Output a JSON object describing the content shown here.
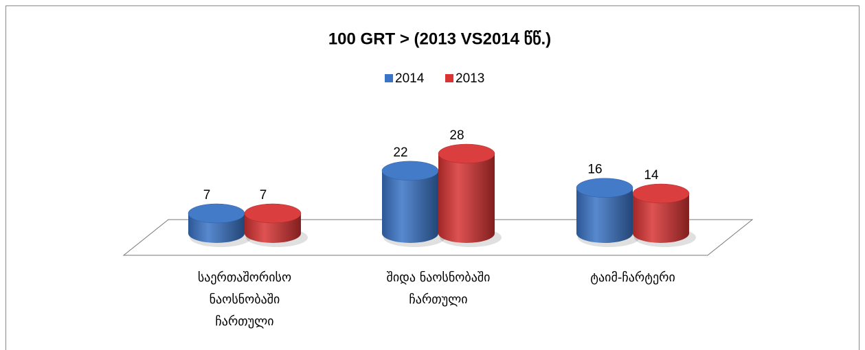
{
  "chart_data": {
    "type": "bar3d",
    "title": "100 GRT > (2013 VS2014 წწ.)",
    "categories": [
      "საერთაშორისო\nნაოსნობაში\nჩართული",
      "შიდა ნაოსნობაში\nჩართული",
      "ტაიმ-ჩარტერი"
    ],
    "series": [
      {
        "name": "2014",
        "color": "#3a74c6",
        "values": [
          7,
          22,
          16
        ]
      },
      {
        "name": "2013",
        "color": "#d83434",
        "values": [
          7,
          28,
          14
        ]
      }
    ],
    "legend": "top"
  }
}
